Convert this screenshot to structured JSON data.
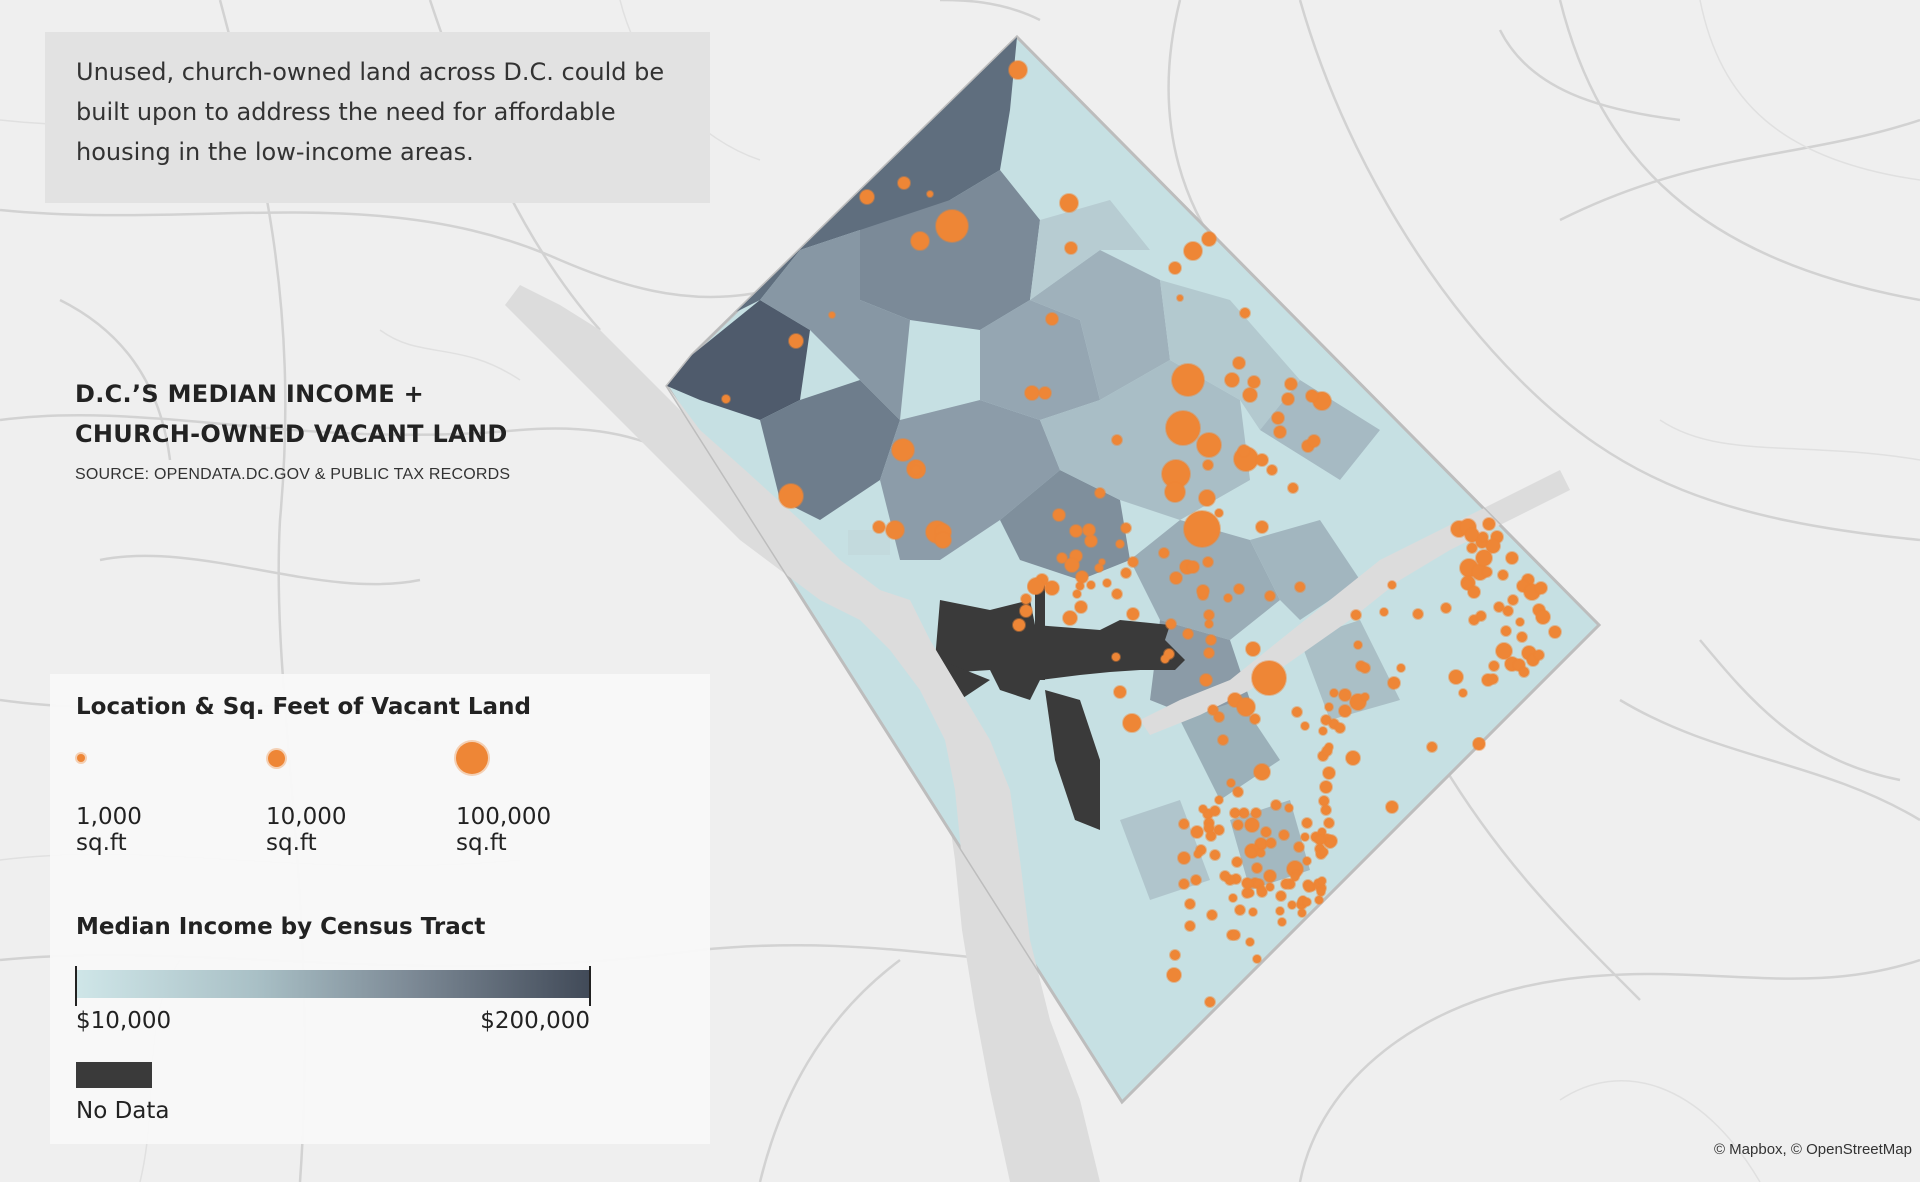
{
  "intro": {
    "text": "Unused, church-owned land across D.C. could be built upon to address the need for affordable housing in the low-income areas."
  },
  "title": {
    "line1": "D.C.’S MEDIAN INCOME +",
    "line2": "CHURCH-OWNED VACANT LAND",
    "source": "SOURCE: OPENDATA.DC.GOV & PUBLIC TAX RECORDS"
  },
  "legend": {
    "size_heading": "Location & Sq. Feet of Vacant Land",
    "sizes": [
      {
        "value": "1,000",
        "unit": "sq.ft"
      },
      {
        "value": "10,000",
        "unit": "sq.ft"
      },
      {
        "value": "100,000",
        "unit": "sq.ft"
      }
    ],
    "income_heading": "Median Income by Census Tract",
    "income_min": "$10,000",
    "income_max": "$200,000",
    "no_data_label": "No Data"
  },
  "colors": {
    "background": "#efefef",
    "water": "#dcdcdc",
    "roads": "#cfcfcf",
    "income_low": "#cfe6e8",
    "income_mid": "#8e9eaa",
    "income_high": "#414a58",
    "no_data": "#3a3a3a",
    "dot": "#ee8636"
  },
  "attribution": "© Mapbox, © OpenStreetMap"
}
